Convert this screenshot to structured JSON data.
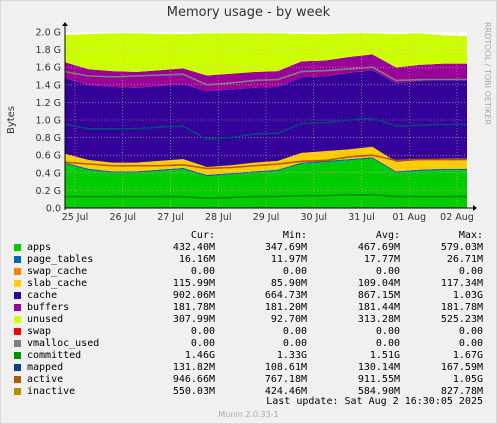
{
  "chart_data": {
    "type": "area",
    "title": "Memory usage - by week",
    "ylabel": "Bytes",
    "ylim": [
      0,
      2.0
    ],
    "yunit": "G",
    "yticks": [
      "0.0",
      "0.2 G",
      "0.4 G",
      "0.6 G",
      "0.8 G",
      "1.0 G",
      "1.2 G",
      "1.4 G",
      "1.6 G",
      "1.8 G",
      "2.0 G"
    ],
    "xticks": [
      "25 Jul",
      "26 Jul",
      "27 Jul",
      "28 Jul",
      "29 Jul",
      "30 Jul",
      "31 Jul",
      "01 Aug",
      "02 Aug"
    ],
    "grid": true,
    "x": [
      "25 Jul",
      "25 Jul 12h",
      "26 Jul",
      "26 Jul 12h",
      "27 Jul",
      "27 Jul 12h",
      "28 Jul",
      "28 Jul 12h",
      "29 Jul",
      "29 Jul 12h",
      "30 Jul",
      "30 Jul 12h",
      "31 Jul",
      "31 Jul 12h",
      "01 Aug",
      "01 Aug 12h",
      "02 Aug",
      "02 Aug 12h"
    ],
    "stack": [
      {
        "name": "apps",
        "color": "#00cc00",
        "values": [
          0.5,
          0.43,
          0.4,
          0.4,
          0.42,
          0.44,
          0.36,
          0.38,
          0.4,
          0.42,
          0.5,
          0.52,
          0.54,
          0.56,
          0.4,
          0.42,
          0.43,
          0.43
        ]
      },
      {
        "name": "page_tables",
        "color": "#0066b3",
        "values": [
          0.016,
          0.016,
          0.016,
          0.016,
          0.016,
          0.016,
          0.016,
          0.016,
          0.016,
          0.016,
          0.016,
          0.016,
          0.016,
          0.016,
          0.016,
          0.016,
          0.016,
          0.016
        ]
      },
      {
        "name": "swap_cache",
        "color": "#ff8000",
        "values": [
          0,
          0,
          0,
          0,
          0,
          0,
          0,
          0,
          0,
          0,
          0,
          0,
          0,
          0,
          0,
          0,
          0,
          0
        ]
      },
      {
        "name": "slab_cache",
        "color": "#ffcc00",
        "values": [
          0.1,
          0.1,
          0.1,
          0.1,
          0.1,
          0.1,
          0.09,
          0.09,
          0.1,
          0.1,
          0.11,
          0.11,
          0.11,
          0.12,
          0.11,
          0.11,
          0.115,
          0.115
        ]
      },
      {
        "name": "cache",
        "color": "#330099",
        "values": [
          0.86,
          0.85,
          0.86,
          0.85,
          0.85,
          0.85,
          0.86,
          0.86,
          0.85,
          0.84,
          0.86,
          0.85,
          0.87,
          0.87,
          0.89,
          0.9,
          0.9,
          0.9
        ]
      },
      {
        "name": "buffers",
        "color": "#990099",
        "values": [
          0.18,
          0.18,
          0.18,
          0.18,
          0.18,
          0.18,
          0.18,
          0.18,
          0.18,
          0.18,
          0.18,
          0.18,
          0.18,
          0.18,
          0.18,
          0.18,
          0.18,
          0.18
        ]
      },
      {
        "name": "unused",
        "color": "#ccff00",
        "values": [
          0.31,
          0.4,
          0.43,
          0.44,
          0.41,
          0.39,
          0.48,
          0.46,
          0.44,
          0.43,
          0.31,
          0.3,
          0.27,
          0.24,
          0.38,
          0.36,
          0.32,
          0.31
        ]
      }
    ],
    "lines": [
      {
        "name": "committed",
        "color": "#808080",
        "values": [
          1.55,
          1.5,
          1.49,
          1.5,
          1.51,
          1.52,
          1.4,
          1.42,
          1.45,
          1.46,
          1.55,
          1.56,
          1.58,
          1.6,
          1.45,
          1.46,
          1.46,
          1.46
        ]
      },
      {
        "name": "mapped",
        "color": "#008f00",
        "values": [
          0.13,
          0.13,
          0.13,
          0.13,
          0.13,
          0.13,
          0.11,
          0.12,
          0.13,
          0.13,
          0.14,
          0.14,
          0.15,
          0.15,
          0.13,
          0.13,
          0.13,
          0.13
        ]
      },
      {
        "name": "active",
        "color": "#00487d",
        "values": [
          0.95,
          0.9,
          0.9,
          0.9,
          0.92,
          0.93,
          0.78,
          0.8,
          0.84,
          0.85,
          0.96,
          0.97,
          1.0,
          1.02,
          0.93,
          0.94,
          0.95,
          0.95
        ]
      },
      {
        "name": "inactive",
        "color": "#b35a00",
        "values": [
          0.52,
          0.5,
          0.48,
          0.48,
          0.48,
          0.49,
          0.45,
          0.46,
          0.48,
          0.5,
          0.53,
          0.54,
          0.58,
          0.6,
          0.54,
          0.55,
          0.55,
          0.55
        ]
      }
    ]
  },
  "watermark": "RRDTOOL / TOBI OETIKER",
  "legend": {
    "headers": {
      "cur": "Cur:",
      "min": "Min:",
      "avg": "Avg:",
      "max": "Max:"
    },
    "rows": [
      {
        "name": "apps",
        "color": "#00cc00",
        "cur": "432.40M",
        "min": "347.69M",
        "avg": "467.69M",
        "max": "579.03M"
      },
      {
        "name": "page_tables",
        "color": "#0066b3",
        "cur": "16.16M",
        "min": "11.97M",
        "avg": "17.77M",
        "max": "26.71M"
      },
      {
        "name": "swap_cache",
        "color": "#ff8000",
        "cur": "0.00",
        "min": "0.00",
        "avg": "0.00",
        "max": "0.00"
      },
      {
        "name": "slab_cache",
        "color": "#ffcc00",
        "cur": "115.99M",
        "min": "85.90M",
        "avg": "109.04M",
        "max": "117.34M"
      },
      {
        "name": "cache",
        "color": "#330099",
        "cur": "902.06M",
        "min": "664.73M",
        "avg": "867.15M",
        "max": "1.03G"
      },
      {
        "name": "buffers",
        "color": "#990099",
        "cur": "181.78M",
        "min": "181.20M",
        "avg": "181.44M",
        "max": "181.78M"
      },
      {
        "name": "unused",
        "color": "#ccff00",
        "cur": "307.99M",
        "min": "92.70M",
        "avg": "313.28M",
        "max": "525.23M"
      },
      {
        "name": "swap",
        "color": "#ff0000",
        "cur": "0.00",
        "min": "0.00",
        "avg": "0.00",
        "max": "0.00"
      },
      {
        "name": "vmalloc_used",
        "color": "#808080",
        "cur": "0.00",
        "min": "0.00",
        "avg": "0.00",
        "max": "0.00"
      },
      {
        "name": "committed",
        "color": "#008f00",
        "cur": "1.46G",
        "min": "1.33G",
        "avg": "1.51G",
        "max": "1.67G"
      },
      {
        "name": "mapped",
        "color": "#00487d",
        "cur": "131.82M",
        "min": "108.61M",
        "avg": "130.14M",
        "max": "167.59M"
      },
      {
        "name": "active",
        "color": "#b35a00",
        "cur": "946.66M",
        "min": "767.18M",
        "avg": "911.55M",
        "max": "1.05G"
      },
      {
        "name": "inactive",
        "color": "#b38f00",
        "cur": "550.03M",
        "min": "424.46M",
        "avg": "584.90M",
        "max": "827.78M"
      }
    ]
  },
  "last_update": "Last update:  Sat Aug  2 16:30:05 2025",
  "footer": "Munin 2.0.33-1"
}
